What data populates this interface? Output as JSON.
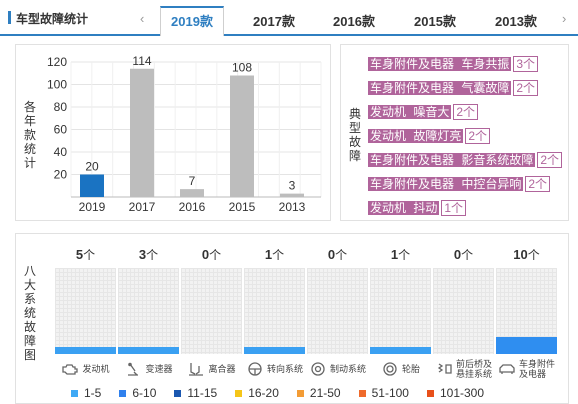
{
  "header": {
    "title": "车型故障统计",
    "prev_icon": "‹",
    "next_icon": "›",
    "tabs": [
      {
        "label": "2019款",
        "active": true
      },
      {
        "label": "2017款",
        "active": false
      },
      {
        "label": "2016款",
        "active": false
      },
      {
        "label": "2015款",
        "active": false
      },
      {
        "label": "2013款",
        "active": false
      }
    ]
  },
  "yearly": {
    "ylabel": "各年款统计",
    "bar_colors": {
      "highlight": "#1a73c2",
      "normal": "#bdbdbd"
    },
    "chart_data": {
      "type": "bar",
      "categories": [
        "2019",
        "2017",
        "2016",
        "2015",
        "2013"
      ],
      "values": [
        20,
        114,
        7,
        108,
        3
      ],
      "yticks": [
        "120",
        "100",
        "80",
        "60",
        "40",
        "20"
      ],
      "ylim": [
        0,
        120
      ],
      "grid": true
    }
  },
  "typical": {
    "label": "典型故障",
    "items": [
      {
        "tag": "车身附件及电器",
        "detail": "车身共振",
        "count": "3个"
      },
      {
        "tag": "车身附件及电器",
        "detail": "气囊故障",
        "count": "2个"
      },
      {
        "tag": "发动机",
        "detail": "噪音大",
        "count": "2个"
      },
      {
        "tag": "发动机",
        "detail": "故障灯亮",
        "count": "2个"
      },
      {
        "tag": "车身附件及电器",
        "detail": "影音系统故障",
        "count": "2个"
      },
      {
        "tag": "车身附件及电器",
        "detail": "中控台异响",
        "count": "2个"
      },
      {
        "tag": "发动机",
        "detail": "抖动",
        "count": "1个"
      }
    ]
  },
  "systems": {
    "label": "八大系统故障图",
    "unit": "个",
    "items": [
      {
        "name": "发动机",
        "count": "5",
        "level": 0.08,
        "color": "#3aa0f2",
        "icon": "engine-icon"
      },
      {
        "name": "变速器",
        "count": "3",
        "level": 0.08,
        "color": "#3aa0f2",
        "icon": "gear-shift-icon"
      },
      {
        "name": "离合器",
        "count": "0",
        "level": 0,
        "color": "#3aa0f2",
        "icon": "clutch-icon"
      },
      {
        "name": "转向系统",
        "count": "1",
        "level": 0.08,
        "color": "#3aa0f2",
        "icon": "steering-wheel-icon"
      },
      {
        "name": "制动系统",
        "count": "0",
        "level": 0,
        "color": "#3aa0f2",
        "icon": "brake-icon"
      },
      {
        "name": "轮胎",
        "count": "1",
        "level": 0.08,
        "color": "#3aa0f2",
        "icon": "tire-icon"
      },
      {
        "name": "前后桥及悬挂系统",
        "name_lines": [
          "前后桥及",
          "悬挂系统"
        ],
        "count": "0",
        "level": 0,
        "color": "#3aa0f2",
        "icon": "suspension-icon"
      },
      {
        "name": "车身附件及电器",
        "name_lines": [
          "车身附件",
          "及电器"
        ],
        "count": "10",
        "level": 0.2,
        "color": "#2f8ef0",
        "icon": "car-body-icon"
      }
    ],
    "legend": [
      {
        "label": "1-5",
        "color": "#3fa9f5"
      },
      {
        "label": "6-10",
        "color": "#2f80ed"
      },
      {
        "label": "11-15",
        "color": "#1a57b0"
      },
      {
        "label": "16-20",
        "color": "#f5c518"
      },
      {
        "label": "21-50",
        "color": "#f39c35"
      },
      {
        "label": "51-100",
        "color": "#ef6a2b"
      },
      {
        "label": "101-300",
        "color": "#e8501a"
      }
    ]
  }
}
